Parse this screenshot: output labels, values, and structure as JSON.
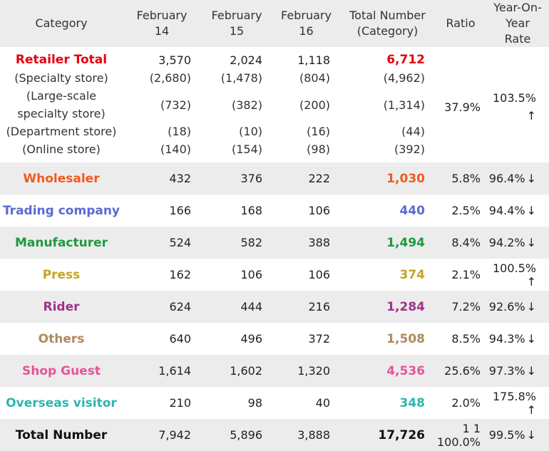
{
  "header": {
    "category": "Category",
    "feb14_line1": "February",
    "feb14_line2": "14",
    "feb15_line1": "February",
    "feb15_line2": "15",
    "feb16_line1": "February",
    "feb16_line2": "16",
    "total_line1": "Total Number",
    "total_line2": "(Category)",
    "ratio": "Ratio",
    "yoy_line1": "Year-On-Year",
    "yoy_line2": "Rate"
  },
  "retailer": {
    "name": "Retailer Total",
    "color": "#e60012",
    "feb14": "3,570",
    "feb15": "2,024",
    "feb16": "1,118",
    "total": "6,712",
    "ratio": "37.9%",
    "yoy": "103.5%",
    "yoy_arrow": "↑",
    "subs": [
      {
        "name": "(Specialty store)",
        "feb14": "(2,680)",
        "feb15": "(1,478)",
        "feb16": "(804)",
        "total": "(4,962)"
      },
      {
        "name_line1": "(Large-scale",
        "name_line2": "specialty store)",
        "feb14": "(732)",
        "feb15": "(382)",
        "feb16": "(200)",
        "total": "(1,314)"
      },
      {
        "name": "(Department store)",
        "feb14": "(18)",
        "feb15": "(10)",
        "feb16": "(16)",
        "total": "(44)"
      },
      {
        "name": "(Online store)",
        "feb14": "(140)",
        "feb15": "(154)",
        "feb16": "(98)",
        "total": "(392)"
      }
    ]
  },
  "rows": [
    {
      "name": "Wholesaler",
      "color": "#f05a1e",
      "feb14": "432",
      "feb15": "376",
      "feb16": "222",
      "total": "1,030",
      "ratio": "5.8%",
      "yoy": "96.4%",
      "arrow": "↓"
    },
    {
      "name": "Trading company",
      "color": "#5a6ad2",
      "feb14": "166",
      "feb15": "168",
      "feb16": "106",
      "total": "440",
      "ratio": "2.5%",
      "yoy": "94.4%",
      "arrow": "↓"
    },
    {
      "name": "Manufacturer",
      "color": "#1e9a3c",
      "feb14": "524",
      "feb15": "582",
      "feb16": "388",
      "total": "1,494",
      "ratio": "8.4%",
      "yoy": "94.2%",
      "arrow": "↓"
    },
    {
      "name": "Press",
      "color": "#c8a31e",
      "feb14": "162",
      "feb15": "106",
      "feb16": "106",
      "total": "374",
      "ratio": "2.1%",
      "yoy": "100.5%",
      "arrow": "↑"
    },
    {
      "name": "Rider",
      "color": "#a0318c",
      "feb14": "624",
      "feb15": "444",
      "feb16": "216",
      "total": "1,284",
      "ratio": "7.2%",
      "yoy": "92.6%",
      "arrow": "↓"
    },
    {
      "name": "Others",
      "color": "#b08a5a",
      "feb14": "640",
      "feb15": "496",
      "feb16": "372",
      "total": "1,508",
      "ratio": "8.5%",
      "yoy": "94.3%",
      "arrow": "↓"
    },
    {
      "name": "Shop Guest",
      "color": "#e8529a",
      "feb14": "1,614",
      "feb15": "1,602",
      "feb16": "1,320",
      "total": "4,536",
      "ratio": "25.6%",
      "yoy": "97.3%",
      "arrow": "↓"
    },
    {
      "name": "Overseas visitor",
      "color": "#2bb5b0",
      "feb14": "210",
      "feb15": "98",
      "feb16": "40",
      "total": "348",
      "ratio": "2.0%",
      "yoy": "175.8%",
      "arrow": "↑"
    },
    {
      "name": "Total Number",
      "color": "#111111",
      "feb14": "7,942",
      "feb15": "5,896",
      "feb16": "3,888",
      "total": "17,726",
      "ratio": "1 1 100.0%",
      "yoy": "99.5%",
      "arrow": "↓"
    }
  ]
}
